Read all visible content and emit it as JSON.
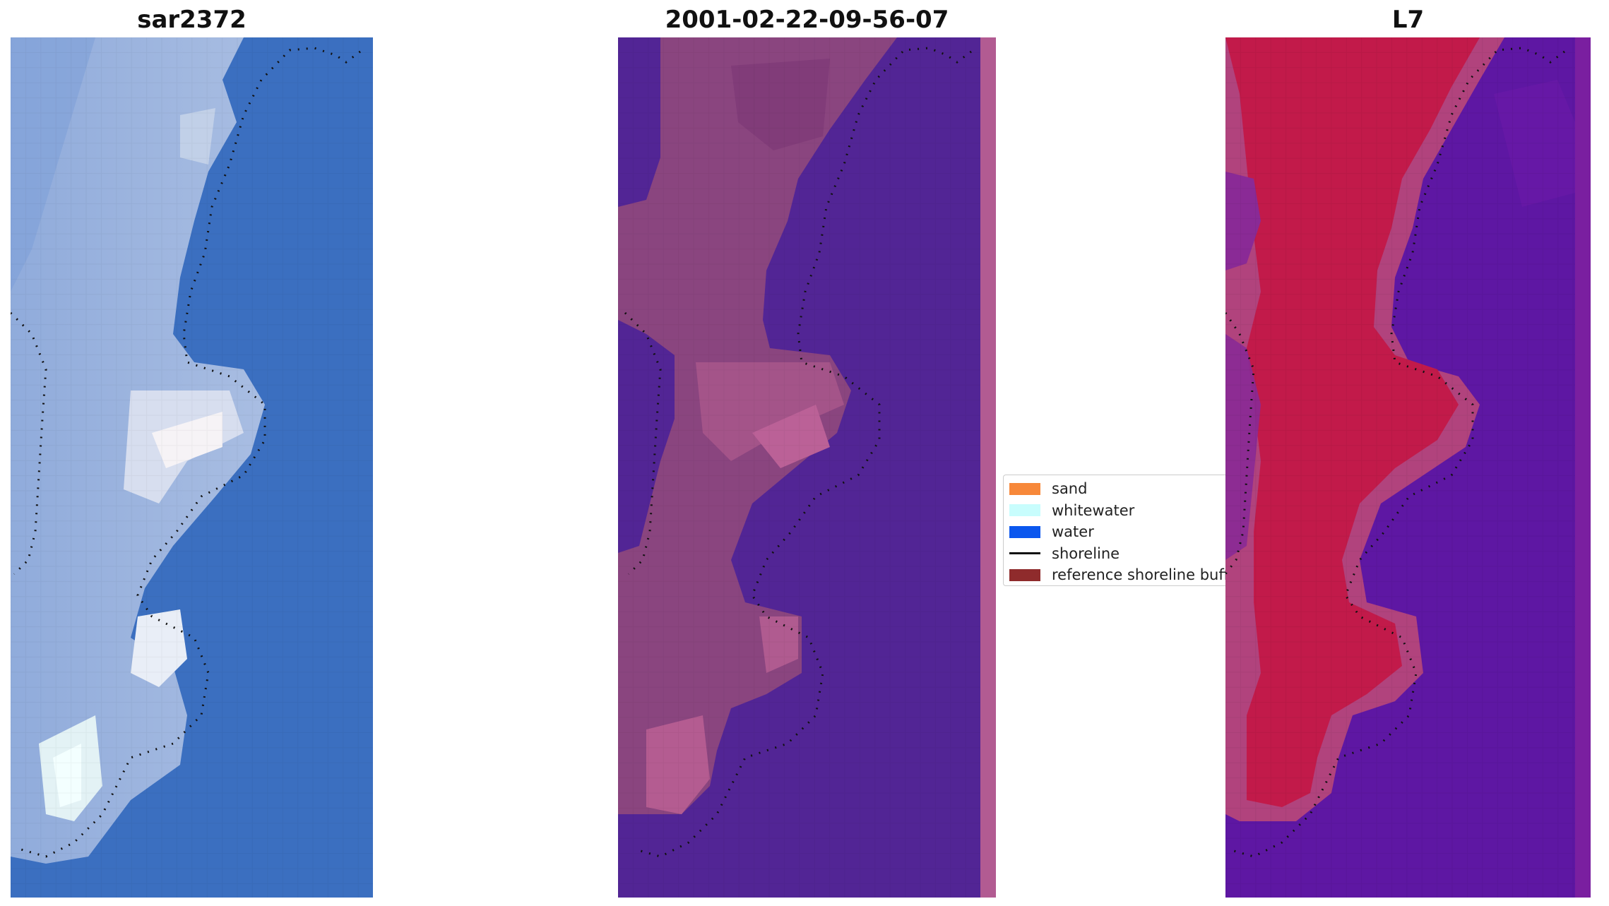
{
  "panels": [
    {
      "title": "sar2372",
      "view": "rgb-image"
    },
    {
      "title": "2001-02-22-09-56-07",
      "view": "classified-image"
    },
    {
      "title": "L7",
      "view": "index-image"
    }
  ],
  "legend": {
    "items": [
      {
        "label": "sand",
        "color": "#f7883a"
      },
      {
        "label": "whitewater",
        "color": "#c8fdfd"
      },
      {
        "label": "water",
        "color": "#0b57ee"
      },
      {
        "label": "shoreline",
        "color": "#111111",
        "kind": "line"
      },
      {
        "label": "reference shoreline buff",
        "color": "#8f2b2c"
      }
    ]
  },
  "colors": {
    "rgb_water": "#3b6fc0",
    "rgb_sand": "#8aa7d8",
    "rgb_foam": "#f2f4fa",
    "class_water": "#522595",
    "class_land": "#8a457f",
    "class_land_light": "#b45c91",
    "index_land": "#c21a4a",
    "index_water": "#5e17a3",
    "shoreline_dots": "#111111"
  }
}
